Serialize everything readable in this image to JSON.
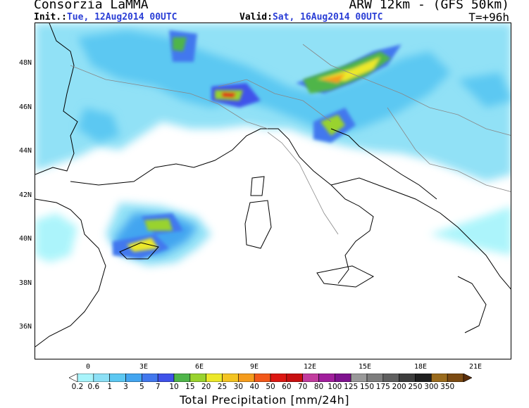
{
  "header": {
    "title_left": "Consorzia LaMMA",
    "title_right": "ARW 12km - (GFS 50km)",
    "init_label": "Init.:",
    "init_value": "Tue, 12Aug2014 00UTC",
    "valid_label": "Valid:",
    "valid_value": "Sat, 16Aug2014 00UTC",
    "lead_time": "T=+96h"
  },
  "map": {
    "lat_labels": [
      "48N",
      "46N",
      "44N",
      "42N",
      "40N",
      "38N",
      "36N"
    ],
    "lon_labels": [
      "0",
      "3E",
      "6E",
      "9E",
      "12E",
      "15E",
      "18E",
      "21E"
    ],
    "ocean_color": "#ffffff",
    "coastline_color": "#000000",
    "border_color": "#888888"
  },
  "legend": {
    "thresholds": [
      "0.2",
      "0.6",
      "1",
      "3",
      "5",
      "7",
      "10",
      "15",
      "20",
      "25",
      "30",
      "40",
      "50",
      "60",
      "70",
      "80",
      "100",
      "125",
      "150",
      "175",
      "200",
      "250",
      "300",
      "350"
    ],
    "colors": [
      "#ffffff",
      "#a8f4fb",
      "#8ce0f6",
      "#5cc8f2",
      "#43a5f0",
      "#4278ee",
      "#3f52ea",
      "#4fb54a",
      "#99d32e",
      "#ece82a",
      "#f4c422",
      "#f59c1d",
      "#f2581a",
      "#dd1712",
      "#c80f10",
      "#c23c9e",
      "#a01e9c",
      "#7f128f",
      "#999999",
      "#7d7d7d",
      "#5f5f5f",
      "#3d3d3d",
      "#1f1f1f",
      "#9a6b1d",
      "#7b4a12",
      "#5a2e0c"
    ],
    "title": "Total Precipitation [mm/24h]"
  }
}
